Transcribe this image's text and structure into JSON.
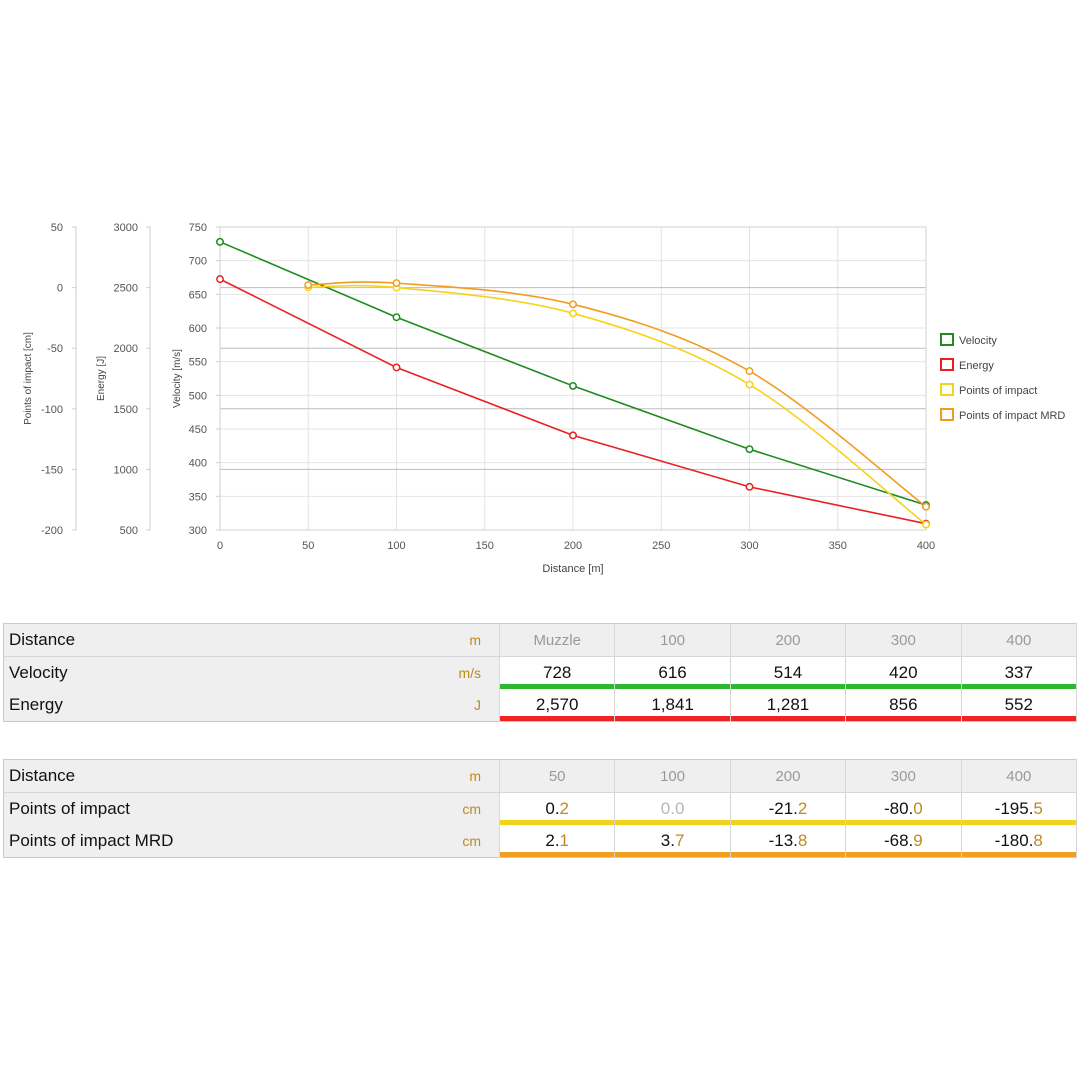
{
  "chart_data": {
    "type": "line",
    "x": [
      0,
      50,
      100,
      200,
      300,
      400
    ],
    "xlabel": "Distance [m]",
    "xlim": [
      0,
      400
    ],
    "xticks": [
      "0",
      "50",
      "100",
      "150",
      "200",
      "250",
      "300",
      "350",
      "400"
    ],
    "y_axes": [
      {
        "label": "Velocity [m/s]",
        "range": [
          300,
          750
        ],
        "ticks": [
          "750",
          "700",
          "650",
          "600",
          "550",
          "500",
          "450",
          "400",
          "350",
          "300"
        ]
      },
      {
        "label": "Energy [J]",
        "range": [
          500,
          3000
        ],
        "ticks": [
          "3000",
          "2500",
          "2000",
          "1500",
          "1000",
          "500"
        ]
      },
      {
        "label": "Points of impact [cm]",
        "range": [
          -200,
          50
        ],
        "ticks": [
          "50",
          "0",
          "-50",
          "-100",
          "-150",
          "-200"
        ]
      }
    ],
    "series": [
      {
        "name": "Velocity",
        "color": "#1e8c1e",
        "axis": "velocity",
        "x": [
          0,
          100,
          200,
          300,
          400
        ],
        "values": [
          728,
          616,
          514,
          420,
          337
        ]
      },
      {
        "name": "Energy",
        "color": "#e82020",
        "axis": "energy",
        "x": [
          0,
          100,
          200,
          300,
          400
        ],
        "values": [
          2570,
          1841,
          1281,
          856,
          552
        ]
      },
      {
        "name": "Points of impact",
        "color": "#f5d31a",
        "axis": "impact",
        "x": [
          50,
          100,
          200,
          300,
          400
        ],
        "values": [
          0.2,
          0.0,
          -21.2,
          -80.0,
          -195.5
        ]
      },
      {
        "name": "Points of impact MRD",
        "color": "#f29c1f",
        "axis": "impact",
        "x": [
          50,
          100,
          200,
          300,
          400
        ],
        "values": [
          2.1,
          3.7,
          -13.8,
          -68.9,
          -180.8
        ]
      }
    ],
    "legend_position": "right",
    "grid": true
  },
  "table1": {
    "header": {
      "label": "Distance",
      "unit": "m",
      "cols": [
        "Muzzle",
        "100",
        "200",
        "300",
        "400"
      ]
    },
    "rows": [
      {
        "label": "Velocity",
        "unit": "m/s",
        "values": [
          "728",
          "616",
          "514",
          "420",
          "337"
        ]
      },
      {
        "label": "Energy",
        "unit": "J",
        "values": [
          "2,570",
          "1,841",
          "1,281",
          "856",
          "552"
        ]
      }
    ]
  },
  "table2": {
    "header": {
      "label": "Distance",
      "unit": "m",
      "cols": [
        "50",
        "100",
        "200",
        "300",
        "400"
      ]
    },
    "rows": [
      {
        "label": "Points of impact",
        "unit": "cm",
        "values": [
          {
            "int": "0.",
            "dec": "2"
          },
          {
            "int": "0.",
            "dec": "0"
          },
          {
            "int": "-21.",
            "dec": "2"
          },
          {
            "int": "-80.",
            "dec": "0"
          },
          {
            "int": "-195.",
            "dec": "5"
          }
        ]
      },
      {
        "label": "Points of impact MRD",
        "unit": "cm",
        "values": [
          {
            "int": "2.",
            "dec": "1"
          },
          {
            "int": "3.",
            "dec": "7"
          },
          {
            "int": "-13.",
            "dec": "8"
          },
          {
            "int": "-68.",
            "dec": "9"
          },
          {
            "int": "-180.",
            "dec": "8"
          }
        ]
      }
    ]
  }
}
